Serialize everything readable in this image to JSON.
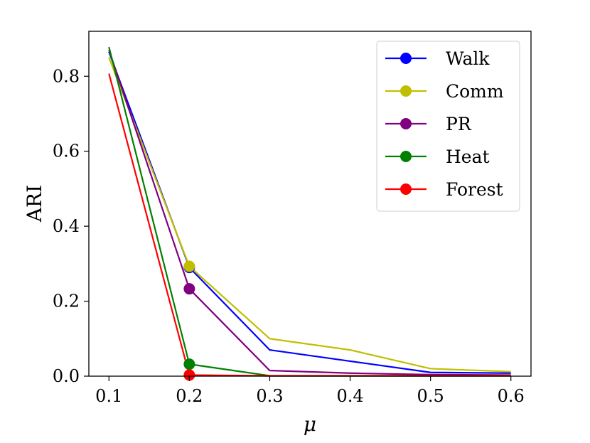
{
  "chart_data": {
    "type": "line",
    "title": "",
    "xlabel": "μ",
    "ylabel": "ARI",
    "x": [
      0.1,
      0.2,
      0.3,
      0.4,
      0.5,
      0.6
    ],
    "x_ticks": [
      "0.1",
      "0.2",
      "0.3",
      "0.4",
      "0.5",
      "0.6"
    ],
    "y_ticks": [
      "0.0",
      "0.2",
      "0.4",
      "0.6",
      "0.8"
    ],
    "xlim": [
      0.075,
      0.625
    ],
    "ylim": [
      0.0,
      0.92
    ],
    "grid": false,
    "legend_position": "top-right",
    "marker_at_x": 0.2,
    "series": [
      {
        "name": "Walk",
        "color": "#0000ff",
        "values": [
          0.865,
          0.29,
          0.07,
          0.04,
          0.01,
          0.008
        ]
      },
      {
        "name": "Comm",
        "color": "#bfbf00",
        "values": [
          0.85,
          0.293,
          0.1,
          0.07,
          0.02,
          0.012
        ]
      },
      {
        "name": "PR",
        "color": "#800080",
        "values": [
          0.87,
          0.233,
          0.015,
          0.008,
          0.004,
          0.003
        ]
      },
      {
        "name": "Heat",
        "color": "#008000",
        "values": [
          0.878,
          0.032,
          0.001,
          0.001,
          0.001,
          0.001
        ]
      },
      {
        "name": "Forest",
        "color": "#ff0000",
        "values": [
          0.807,
          0.003,
          0.001,
          0.001,
          0.001,
          0.001
        ]
      }
    ]
  }
}
